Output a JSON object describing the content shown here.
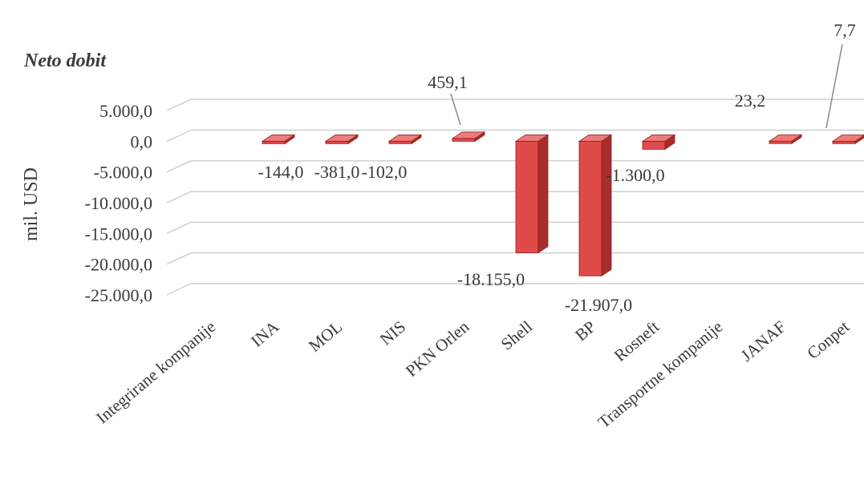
{
  "chart_data": {
    "type": "bar",
    "title": "Neto dobit",
    "ylabel": "mil. USD",
    "xlabel": "",
    "ylim": [
      -25000,
      5000
    ],
    "y_ticks": [
      "5.000,0",
      "0,0",
      "-5.000,0",
      "-10.000,0",
      "-15.000,0",
      "-20.000,0",
      "-25.000,0"
    ],
    "categories": [
      "Integrirane kompanije",
      "INA",
      "MOL",
      "NIS",
      "PKN Orlen",
      "Shell",
      "BP",
      "Rosneft",
      "Transportne kompanije",
      "JANAF",
      "Conpet"
    ],
    "values": [
      null,
      -144.0,
      -381.0,
      -102.0,
      459.1,
      -18155.0,
      -21907.0,
      -1300.0,
      null,
      23.2,
      7.7
    ],
    "data_labels": [
      "",
      "-144,0",
      "-381,0",
      "-102,0",
      "459,1",
      "-18.155,0",
      "-21.907,0",
      "-1.300,0",
      "",
      "23,2",
      "7,7"
    ],
    "grid": true,
    "legend": "none",
    "colors": {
      "bar": "#e04a4a",
      "bar_top": "#ef7a7a",
      "bar_side": "#a92c2c"
    }
  }
}
